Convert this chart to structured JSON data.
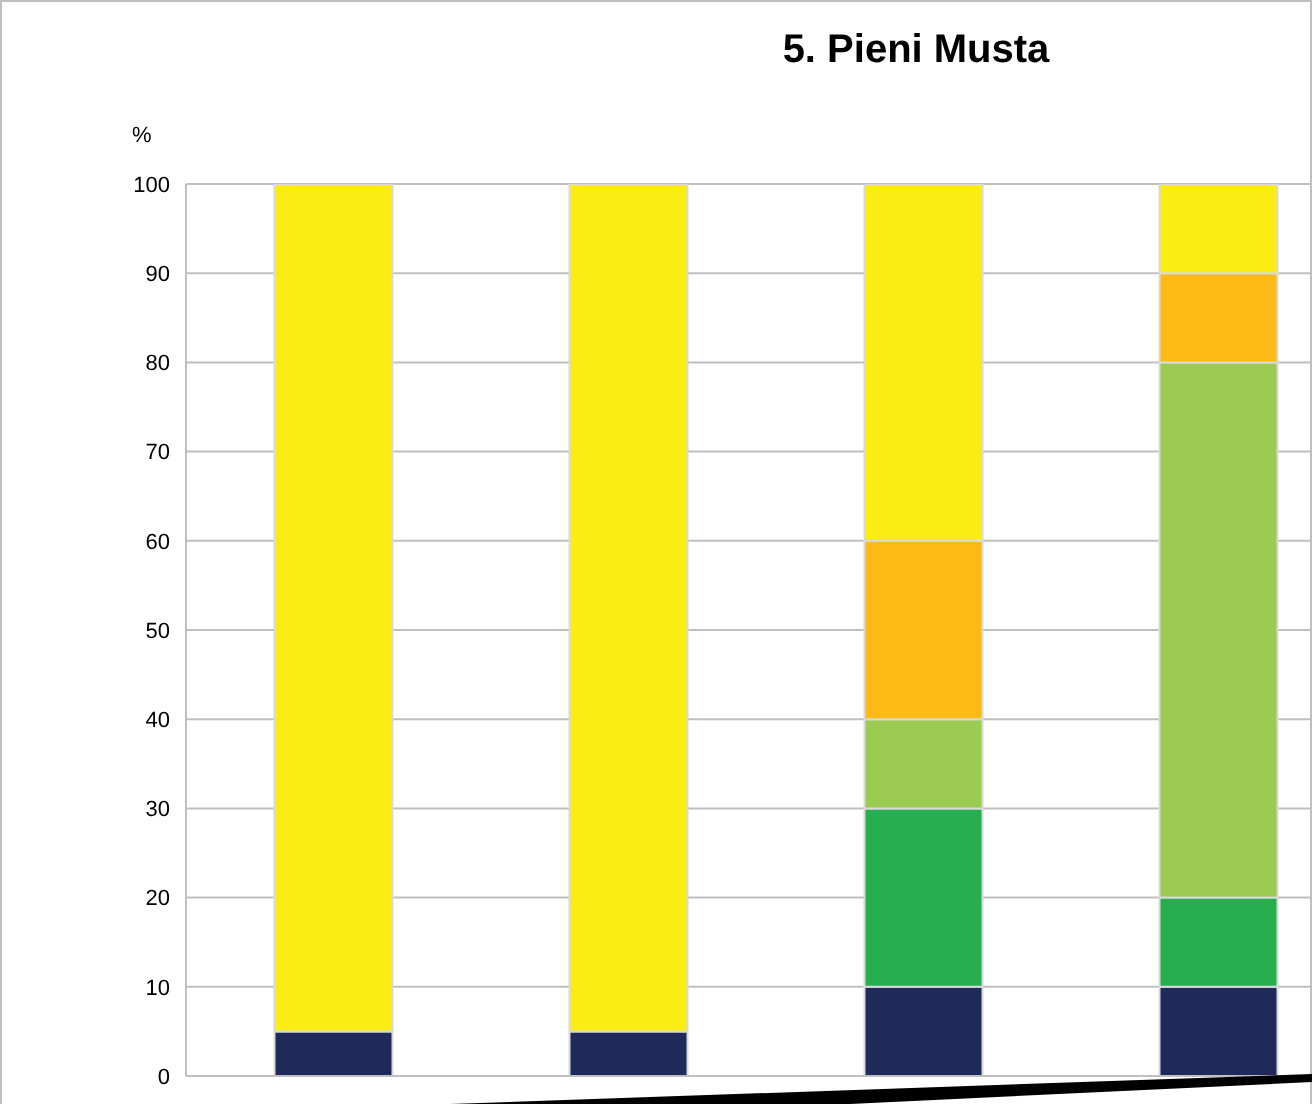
{
  "chart_data": {
    "type": "bar",
    "title": "5. Pieni Musta",
    "ylabel": "%",
    "stacked": true,
    "categories": [
      null,
      null,
      null,
      null
    ],
    "series": [
      {
        "color": "#1f2a5a",
        "values": [
          5,
          5,
          10,
          10
        ]
      },
      {
        "color": "#27ae4f",
        "values": [
          0,
          0,
          20,
          10
        ]
      },
      {
        "color": "#9bcb50",
        "values": [
          0,
          0,
          10,
          60
        ]
      },
      {
        "color": "#fdba16",
        "values": [
          0,
          0,
          20,
          10
        ]
      },
      {
        "color": "#fbec13",
        "values": [
          95,
          95,
          40,
          10
        ]
      }
    ],
    "ylim": [
      0,
      100
    ],
    "yticks": [
      0,
      10,
      20,
      30,
      40,
      50,
      60,
      70,
      80,
      90,
      100
    ],
    "grid": "y",
    "legend": false
  }
}
